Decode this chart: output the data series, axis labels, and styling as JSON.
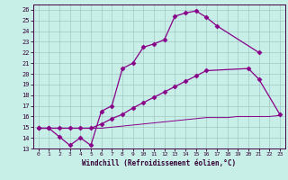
{
  "xlabel": "Windchill (Refroidissement éolien,°C)",
  "bg_color": "#c8eee8",
  "grid_color": "#a0c8c0",
  "line_color": "#880088",
  "xlim": [
    -0.5,
    23.5
  ],
  "ylim": [
    13,
    26.5
  ],
  "xticks": [
    0,
    1,
    2,
    3,
    4,
    5,
    6,
    7,
    8,
    9,
    10,
    11,
    12,
    13,
    14,
    15,
    16,
    17,
    18,
    19,
    20,
    21,
    22,
    23
  ],
  "yticks": [
    13,
    14,
    15,
    16,
    17,
    18,
    19,
    20,
    21,
    22,
    23,
    24,
    25,
    26
  ],
  "c1x": [
    0,
    1,
    2,
    3,
    4,
    5,
    6,
    7,
    8,
    9,
    10,
    11,
    12,
    13,
    14,
    15,
    16,
    17,
    21
  ],
  "c1y": [
    14.9,
    14.9,
    14.1,
    13.3,
    14.0,
    13.3,
    16.5,
    17.0,
    20.5,
    21.0,
    22.5,
    22.8,
    23.2,
    25.4,
    25.7,
    25.9,
    25.3,
    24.5,
    22.0
  ],
  "c2x": [
    0,
    1,
    2,
    3,
    4,
    5,
    6,
    7,
    8,
    9,
    10,
    11,
    12,
    13,
    14,
    15,
    16,
    20,
    21,
    23
  ],
  "c2y": [
    14.9,
    14.9,
    14.9,
    14.9,
    14.9,
    14.9,
    15.3,
    15.8,
    16.2,
    16.8,
    17.3,
    17.8,
    18.3,
    18.8,
    19.3,
    19.8,
    20.3,
    20.5,
    19.5,
    16.2
  ],
  "c3x": [
    0,
    1,
    2,
    3,
    4,
    5,
    6,
    7,
    8,
    9,
    10,
    11,
    12,
    13,
    14,
    15,
    16,
    17,
    18,
    19,
    20,
    21,
    22,
    23
  ],
  "c3y": [
    14.9,
    14.9,
    14.9,
    14.9,
    14.9,
    14.9,
    14.9,
    15.0,
    15.1,
    15.2,
    15.3,
    15.4,
    15.5,
    15.6,
    15.7,
    15.8,
    15.9,
    15.9,
    15.9,
    16.0,
    16.0,
    16.0,
    16.0,
    16.1
  ]
}
